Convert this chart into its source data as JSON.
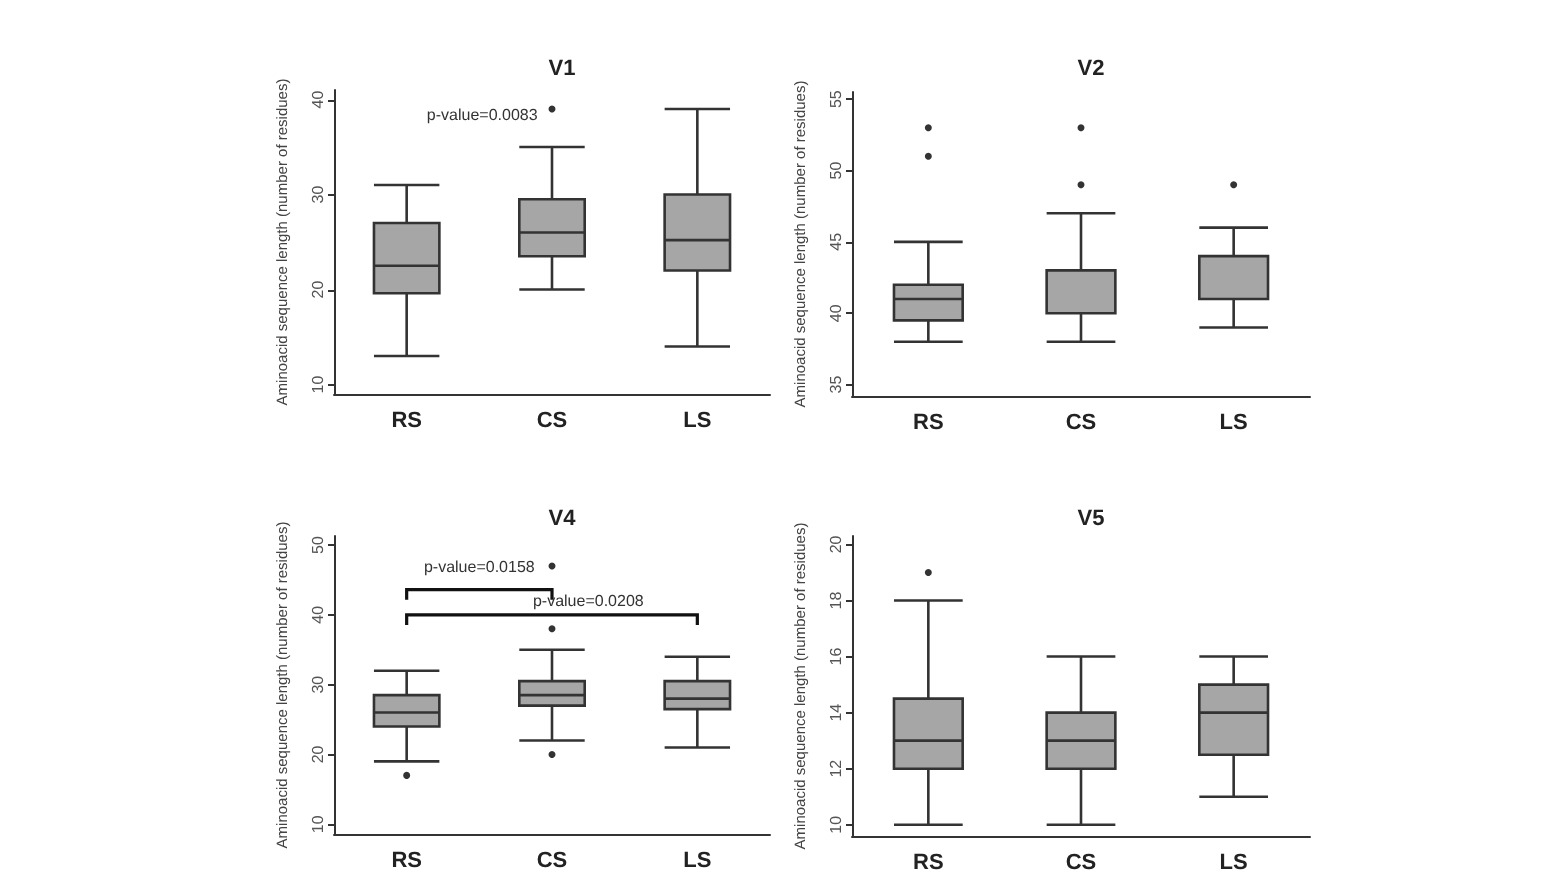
{
  "chart_data": [
    {
      "type": "box",
      "title": "V1",
      "ylabel": "Aminoacid sequence length (number of residues)",
      "categories": [
        "RS",
        "CS",
        "LS"
      ],
      "color": "#a6a6a6",
      "ylim": [
        9,
        41
      ],
      "yticks": [
        10,
        20,
        30,
        40
      ],
      "grid": false,
      "marker": "circle",
      "boxes": [
        {
          "low": 13,
          "q1": 19.6,
          "median": 22.5,
          "q3": 27,
          "high": 31
        },
        {
          "low": 20,
          "q1": 23.5,
          "median": 26,
          "q3": 29.5,
          "high": 35,
          "outliers": [
            39
          ]
        },
        {
          "low": 14,
          "q1": 22,
          "median": 25.2,
          "q3": 30,
          "high": 39
        }
      ],
      "annotations": [
        "p-value=0.0083"
      ]
    },
    {
      "type": "box",
      "title": "V2",
      "ylabel": "Aminoacid sequence length (number of residues)",
      "categories": [
        "RS",
        "CS",
        "LS"
      ],
      "color": "#a6a6a6",
      "ylim": [
        34.2,
        55.5
      ],
      "yticks": [
        35,
        40,
        45,
        50,
        55
      ],
      "grid": false,
      "marker": "circle",
      "boxes": [
        {
          "low": 38,
          "q1": 39.5,
          "median": 41,
          "q3": 42,
          "high": 45,
          "outliers": [
            51,
            53
          ]
        },
        {
          "low": 38,
          "q1": 40,
          "median": 40,
          "q3": 43,
          "high": 47,
          "outliers": [
            49,
            53
          ]
        },
        {
          "low": 39,
          "q1": 41,
          "median": 41,
          "q3": 44,
          "high": 46,
          "outliers": [
            49
          ]
        }
      ]
    },
    {
      "type": "box",
      "title": "V4",
      "ylabel": "Aminoacid sequence length (number of residues)",
      "categories": [
        "RS",
        "CS",
        "LS"
      ],
      "color": "#a6a6a6",
      "ylim": [
        8.6,
        51.3
      ],
      "yticks": [
        10,
        20,
        30,
        40,
        50
      ],
      "grid": false,
      "marker": "circle",
      "boxes": [
        {
          "low": 19,
          "q1": 24,
          "median": 26,
          "q3": 28.5,
          "high": 32,
          "outliers": [
            17
          ]
        },
        {
          "low": 22,
          "q1": 27,
          "median": 28.5,
          "q3": 30.5,
          "high": 35,
          "outliers": [
            20,
            38,
            47
          ]
        },
        {
          "low": 21,
          "q1": 26.5,
          "median": 28,
          "q3": 30.5,
          "high": 34
        }
      ],
      "annotations": [
        "p-value=0.0158",
        "p-value=0.0208"
      ]
    },
    {
      "type": "box",
      "title": "V5",
      "ylabel": "Aminoacid sequence length (number of residues)",
      "categories": [
        "RS",
        "CS",
        "LS"
      ],
      "color": "#a6a6a6",
      "ylim": [
        9.6,
        20.3
      ],
      "yticks": [
        10,
        12,
        14,
        16,
        18,
        20
      ],
      "grid": false,
      "marker": "circle",
      "boxes": [
        {
          "low": 10,
          "q1": 12,
          "median": 13,
          "q3": 14.5,
          "high": 18,
          "outliers": [
            19
          ]
        },
        {
          "low": 10,
          "q1": 12,
          "median": 13,
          "q3": 14,
          "high": 16
        },
        {
          "low": 11,
          "q1": 12.5,
          "median": 14,
          "q3": 15,
          "high": 16
        }
      ]
    }
  ]
}
